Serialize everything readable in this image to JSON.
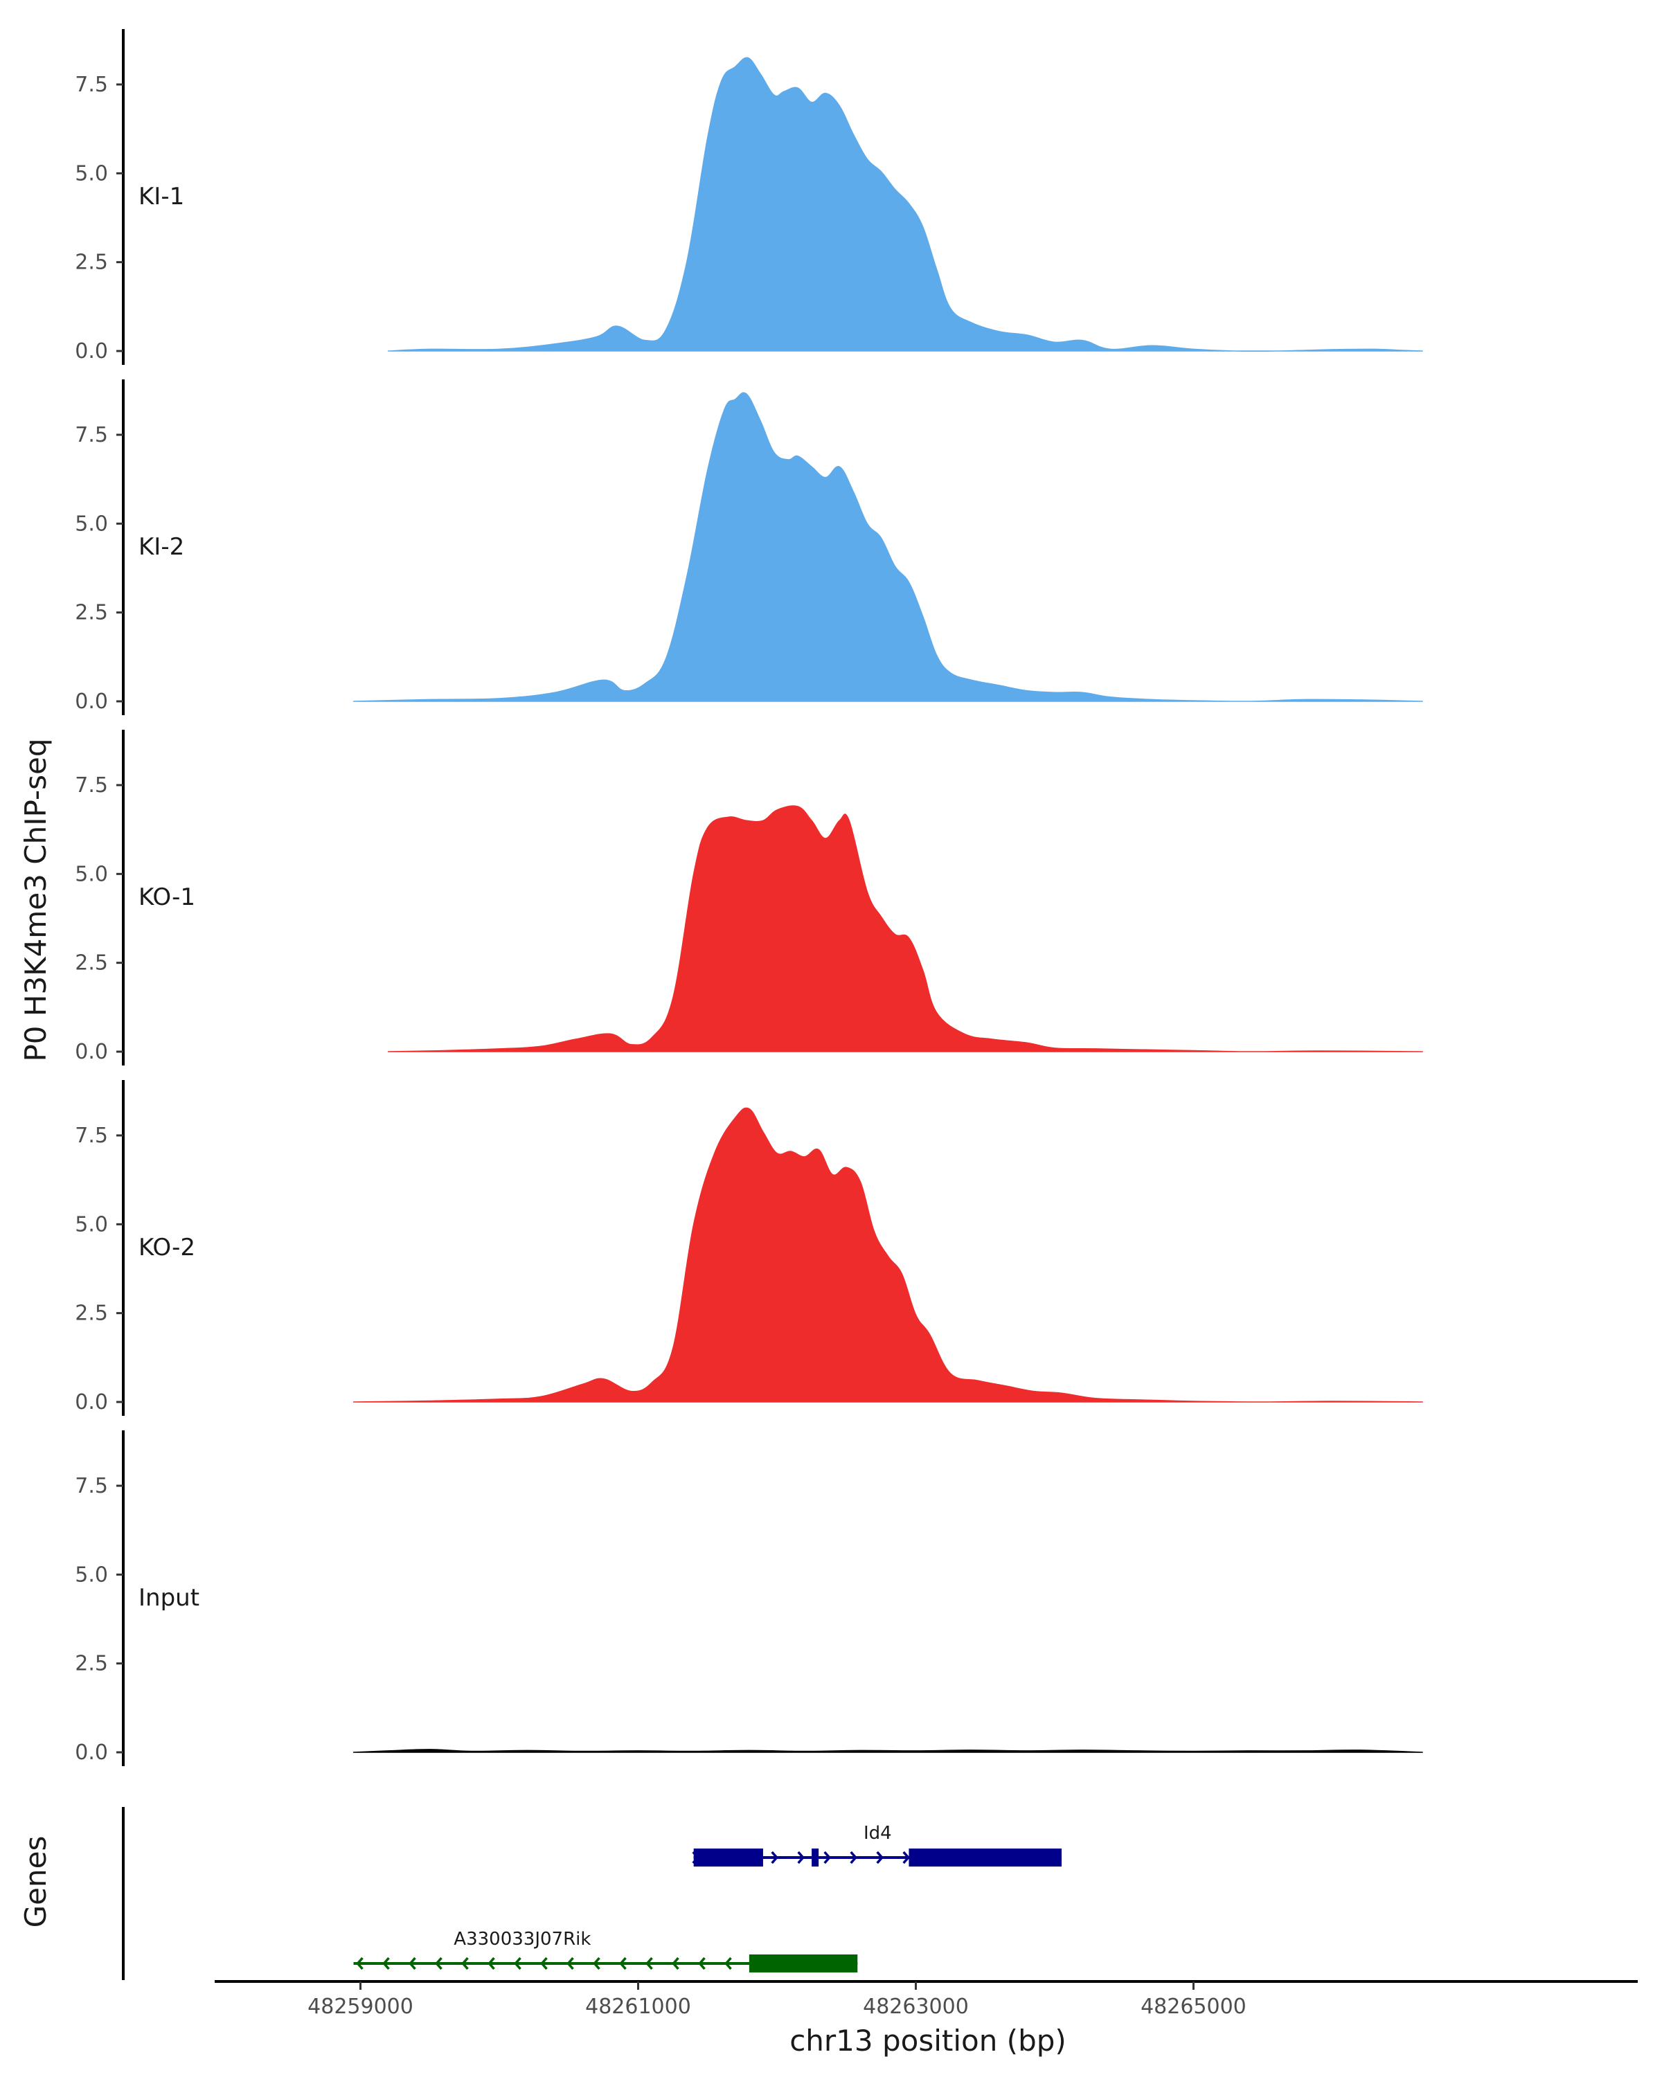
{
  "chart_data": {
    "type": "area",
    "ylabel": "P0 H3K4me3 ChIP-seq",
    "xlabel": "chr13 position (bp)",
    "ylim": [
      0,
      9
    ],
    "yticks": [
      0,
      2.5,
      5,
      7.5
    ],
    "ytick_labels": [
      "0.0",
      "2.5",
      "5.0",
      "7.5"
    ],
    "xlim": [
      48257950,
      48268200
    ],
    "xticks": [
      48259000,
      48261000,
      48263000,
      48265000
    ],
    "xtick_labels": [
      "48259000",
      "48261000",
      "48263000",
      "48265000"
    ],
    "tracks": [
      {
        "name": "KI-1",
        "color": "#5EABEB",
        "points": [
          [
            48259200,
            0
          ],
          [
            48259500,
            0.05
          ],
          [
            48260000,
            0.05
          ],
          [
            48260400,
            0.2
          ],
          [
            48260700,
            0.4
          ],
          [
            48260850,
            0.7
          ],
          [
            48261050,
            0.3
          ],
          [
            48261200,
            0.6
          ],
          [
            48261350,
            2.5
          ],
          [
            48261500,
            6.0
          ],
          [
            48261600,
            7.6
          ],
          [
            48261700,
            8.0
          ],
          [
            48261790,
            8.25
          ],
          [
            48261880,
            7.8
          ],
          [
            48261980,
            7.2
          ],
          [
            48262050,
            7.3
          ],
          [
            48262150,
            7.4
          ],
          [
            48262250,
            7.0
          ],
          [
            48262350,
            7.25
          ],
          [
            48262450,
            6.9
          ],
          [
            48262550,
            6.1
          ],
          [
            48262650,
            5.4
          ],
          [
            48262750,
            5.05
          ],
          [
            48262850,
            4.55
          ],
          [
            48262950,
            4.15
          ],
          [
            48263050,
            3.5
          ],
          [
            48263150,
            2.3
          ],
          [
            48263250,
            1.2
          ],
          [
            48263400,
            0.8
          ],
          [
            48263600,
            0.55
          ],
          [
            48263800,
            0.45
          ],
          [
            48264000,
            0.25
          ],
          [
            48264200,
            0.3
          ],
          [
            48264400,
            0.05
          ],
          [
            48264700,
            0.15
          ],
          [
            48265000,
            0.05
          ],
          [
            48265300,
            0.0
          ],
          [
            48265600,
            0.0
          ],
          [
            48266000,
            0.04
          ],
          [
            48266300,
            0.05
          ],
          [
            48266500,
            0.02
          ],
          [
            48266650,
            0
          ]
        ]
      },
      {
        "name": "KI-2",
        "color": "#5EABEB",
        "points": [
          [
            48258950,
            0
          ],
          [
            48259500,
            0.05
          ],
          [
            48260000,
            0.08
          ],
          [
            48260400,
            0.25
          ],
          [
            48260750,
            0.6
          ],
          [
            48260900,
            0.3
          ],
          [
            48261050,
            0.5
          ],
          [
            48261200,
            1.2
          ],
          [
            48261350,
            3.5
          ],
          [
            48261500,
            6.5
          ],
          [
            48261620,
            8.2
          ],
          [
            48261700,
            8.5
          ],
          [
            48261780,
            8.65
          ],
          [
            48261880,
            7.9
          ],
          [
            48261980,
            7.0
          ],
          [
            48262080,
            6.8
          ],
          [
            48262150,
            6.9
          ],
          [
            48262250,
            6.6
          ],
          [
            48262350,
            6.3
          ],
          [
            48262450,
            6.6
          ],
          [
            48262550,
            5.9
          ],
          [
            48262650,
            5.0
          ],
          [
            48262750,
            4.6
          ],
          [
            48262850,
            3.8
          ],
          [
            48262950,
            3.35
          ],
          [
            48263050,
            2.4
          ],
          [
            48263150,
            1.3
          ],
          [
            48263250,
            0.8
          ],
          [
            48263400,
            0.6
          ],
          [
            48263600,
            0.45
          ],
          [
            48263800,
            0.3
          ],
          [
            48264000,
            0.25
          ],
          [
            48264200,
            0.25
          ],
          [
            48264400,
            0.12
          ],
          [
            48264700,
            0.05
          ],
          [
            48265000,
            0.02
          ],
          [
            48265400,
            0.0
          ],
          [
            48265800,
            0.05
          ],
          [
            48266200,
            0.04
          ],
          [
            48266650,
            0
          ]
        ]
      },
      {
        "name": "KO-1",
        "color": "#EE2C2C",
        "points": [
          [
            48259200,
            0
          ],
          [
            48259600,
            0.03
          ],
          [
            48260000,
            0.08
          ],
          [
            48260300,
            0.15
          ],
          [
            48260550,
            0.35
          ],
          [
            48260800,
            0.5
          ],
          [
            48260950,
            0.2
          ],
          [
            48261100,
            0.4
          ],
          [
            48261250,
            1.5
          ],
          [
            48261400,
            5.0
          ],
          [
            48261500,
            6.3
          ],
          [
            48261650,
            6.6
          ],
          [
            48261780,
            6.5
          ],
          [
            48261900,
            6.5
          ],
          [
            48262000,
            6.8
          ],
          [
            48262150,
            6.9
          ],
          [
            48262250,
            6.5
          ],
          [
            48262350,
            6.0
          ],
          [
            48262450,
            6.5
          ],
          [
            48262520,
            6.5
          ],
          [
            48262650,
            4.5
          ],
          [
            48262750,
            3.8
          ],
          [
            48262850,
            3.3
          ],
          [
            48262950,
            3.2
          ],
          [
            48263050,
            2.3
          ],
          [
            48263150,
            1.1
          ],
          [
            48263350,
            0.5
          ],
          [
            48263550,
            0.35
          ],
          [
            48263800,
            0.25
          ],
          [
            48264000,
            0.1
          ],
          [
            48264300,
            0.08
          ],
          [
            48264700,
            0.05
          ],
          [
            48265000,
            0.03
          ],
          [
            48265400,
            0.0
          ],
          [
            48265900,
            0.02
          ],
          [
            48266650,
            0
          ]
        ]
      },
      {
        "name": "KO-2",
        "color": "#EE2C2C",
        "points": [
          [
            48258950,
            0
          ],
          [
            48259500,
            0.03
          ],
          [
            48260000,
            0.08
          ],
          [
            48260300,
            0.15
          ],
          [
            48260600,
            0.5
          ],
          [
            48260750,
            0.65
          ],
          [
            48260950,
            0.3
          ],
          [
            48261100,
            0.55
          ],
          [
            48261250,
            1.5
          ],
          [
            48261400,
            5.0
          ],
          [
            48261550,
            7.0
          ],
          [
            48261700,
            8.0
          ],
          [
            48261800,
            8.25
          ],
          [
            48261900,
            7.6
          ],
          [
            48262000,
            7.0
          ],
          [
            48262100,
            7.05
          ],
          [
            48262200,
            6.9
          ],
          [
            48262300,
            7.1
          ],
          [
            48262400,
            6.4
          ],
          [
            48262500,
            6.6
          ],
          [
            48262600,
            6.2
          ],
          [
            48262700,
            4.8
          ],
          [
            48262800,
            4.1
          ],
          [
            48262900,
            3.6
          ],
          [
            48263000,
            2.45
          ],
          [
            48263100,
            1.9
          ],
          [
            48263250,
            0.8
          ],
          [
            48263450,
            0.6
          ],
          [
            48263650,
            0.45
          ],
          [
            48263850,
            0.3
          ],
          [
            48264050,
            0.25
          ],
          [
            48264300,
            0.1
          ],
          [
            48264700,
            0.05
          ],
          [
            48265000,
            0.02
          ],
          [
            48265500,
            0.0
          ],
          [
            48266000,
            0.02
          ],
          [
            48266650,
            0
          ]
        ]
      },
      {
        "name": "Input",
        "color": "#000000",
        "points": [
          [
            48258950,
            0
          ],
          [
            48259200,
            0.04
          ],
          [
            48259500,
            0.08
          ],
          [
            48259800,
            0.03
          ],
          [
            48260200,
            0.05
          ],
          [
            48260600,
            0.03
          ],
          [
            48261000,
            0.04
          ],
          [
            48261400,
            0.03
          ],
          [
            48261800,
            0.05
          ],
          [
            48262200,
            0.03
          ],
          [
            48262600,
            0.05
          ],
          [
            48263000,
            0.04
          ],
          [
            48263400,
            0.06
          ],
          [
            48263800,
            0.04
          ],
          [
            48264200,
            0.06
          ],
          [
            48264600,
            0.04
          ],
          [
            48265000,
            0.03
          ],
          [
            48265400,
            0.04
          ],
          [
            48265800,
            0.04
          ],
          [
            48266200,
            0.06
          ],
          [
            48266650,
            0
          ]
        ]
      }
    ],
    "genes_track": {
      "label": "Genes",
      "genes": [
        {
          "name": "Id4",
          "strand": "+",
          "color": "#00008B",
          "start": 48261400,
          "end": 48264050,
          "exons": [
            [
              48261400,
              48261900
            ],
            [
              48262250,
              48262300
            ],
            [
              48262950,
              48264050
            ]
          ]
        },
        {
          "name": "A330033J07Rik",
          "strand": "-",
          "color": "#006400",
          "start": 48258950,
          "end": 48262580,
          "exons": [
            [
              48261800,
              48262580
            ]
          ]
        }
      ]
    }
  }
}
